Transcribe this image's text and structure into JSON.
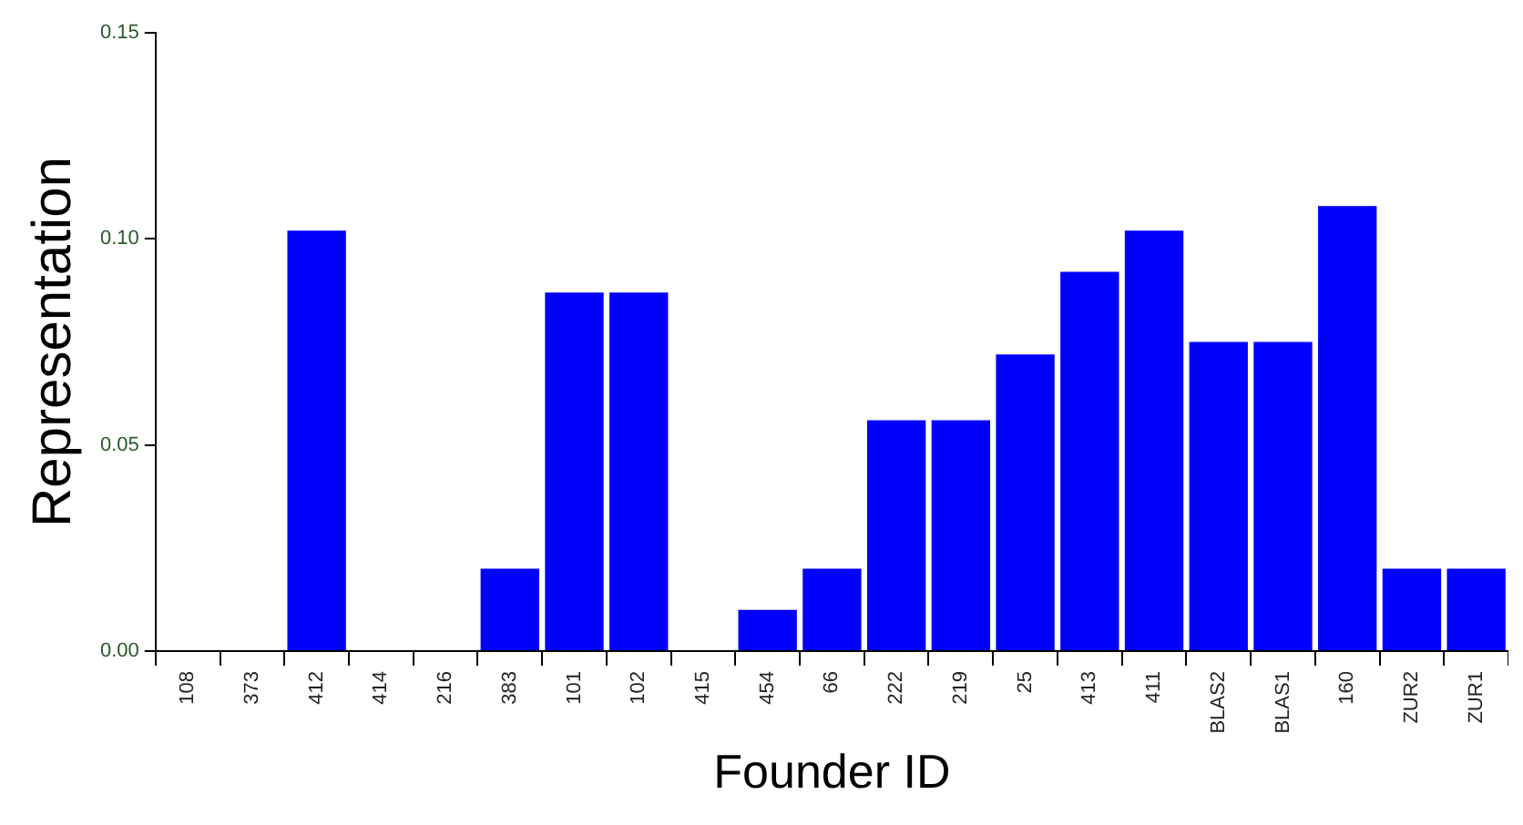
{
  "chart_data": {
    "type": "bar",
    "xlabel": "Founder ID",
    "ylabel": "Representation",
    "categories": [
      "108",
      "373",
      "412",
      "414",
      "216",
      "383",
      "101",
      "102",
      "415",
      "454",
      "66",
      "222",
      "219",
      "25",
      "413",
      "411",
      "BLAS2",
      "BLAS1",
      "160",
      "ZUR2",
      "ZUR1"
    ],
    "values": [
      0,
      0,
      0.102,
      0,
      0,
      0.02,
      0.087,
      0.087,
      0,
      0.01,
      0.02,
      0.056,
      0.056,
      0.072,
      0.092,
      0.102,
      0.075,
      0.075,
      0.108,
      0.02,
      0.02
    ],
    "color": "#0000ff",
    "ylim": [
      0,
      0.15
    ],
    "yticks": [
      {
        "value": 0,
        "label": "0.00"
      },
      {
        "value": 0.05,
        "label": "0.05"
      },
      {
        "value": 0.1,
        "label": "0.10"
      },
      {
        "value": 0.15,
        "label": "0.15"
      }
    ],
    "grid": false,
    "legend": false
  }
}
